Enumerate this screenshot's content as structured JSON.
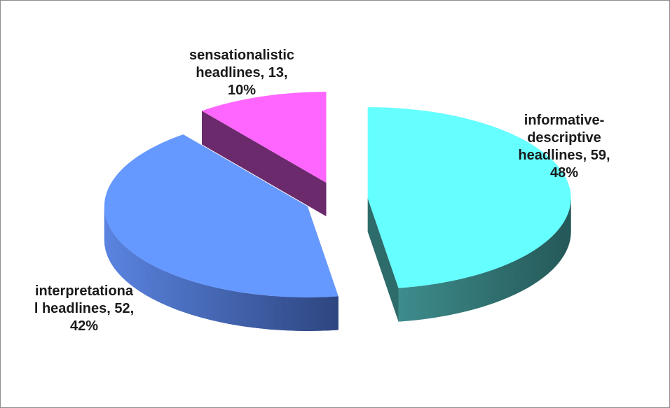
{
  "chart_data": {
    "type": "pie",
    "style": "3d-exploded",
    "legend": "none",
    "slices": [
      {
        "name": "informative-descriptive headlines",
        "value": 59,
        "percent": 48,
        "label_lines": [
          "informative-",
          "descriptive",
          "headlines, 59,",
          "48%"
        ],
        "color": "#66FFFF",
        "side_color": "#2E6B6B"
      },
      {
        "name": "interpretational headlines",
        "value": 52,
        "percent": 42,
        "label_lines": [
          "interpretationa",
          "l headlines, 52,",
          "42%"
        ],
        "color": "#6699FF",
        "side_color": "#3A58A0"
      },
      {
        "name": "sensationalistic headlines",
        "value": 13,
        "percent": 10,
        "label_lines": [
          "sensationalistic",
          "headlines, 13,",
          "10%"
        ],
        "color": "#FF66FF",
        "side_color": "#6B2A6B"
      }
    ]
  }
}
